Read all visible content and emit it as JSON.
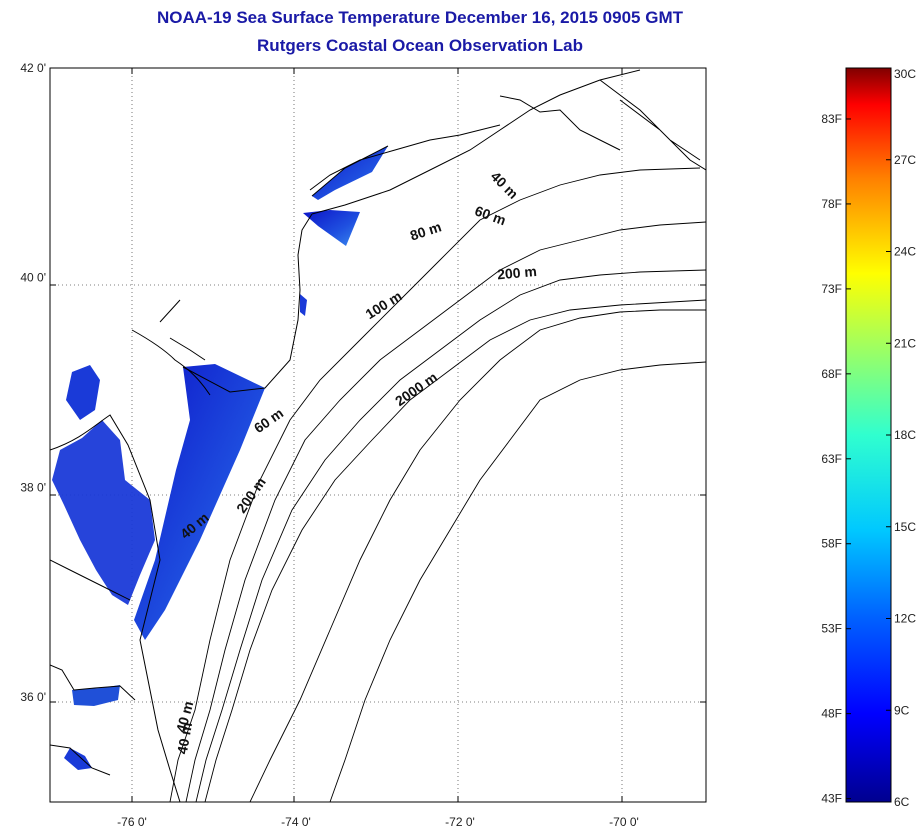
{
  "header": {
    "title": "NOAA-19 Sea Surface Temperature December 16, 2015 0905 GMT",
    "subtitle": "Rutgers Coastal Ocean Observation Lab"
  },
  "map": {
    "lon_range": [
      -77,
      -69
    ],
    "lat_range": [
      35,
      42
    ],
    "lat_ticks": [
      {
        "value": 42,
        "label": "42 0'"
      },
      {
        "value": 40,
        "label": "40 0'"
      },
      {
        "value": 38,
        "label": "38 0'"
      },
      {
        "value": 36,
        "label": "36 0'"
      }
    ],
    "lon_ticks": [
      {
        "value": -76,
        "label": "-76 0'"
      },
      {
        "value": -74,
        "label": "-74 0'"
      },
      {
        "value": -72,
        "label": "-72 0'"
      },
      {
        "value": -70,
        "label": "-70 0'"
      }
    ],
    "contour_labels": [
      {
        "text": "40 m",
        "lon": -71.5,
        "lat": 40.85,
        "rot": 45
      },
      {
        "text": "60 m",
        "lon": -71.65,
        "lat": 40.55,
        "rot": 20
      },
      {
        "text": "80 m",
        "lon": -72.4,
        "lat": 40.4,
        "rot": -18
      },
      {
        "text": "200 m",
        "lon": -71.3,
        "lat": 40.0,
        "rot": -5
      },
      {
        "text": "100 m",
        "lon": -72.9,
        "lat": 39.7,
        "rot": -32
      },
      {
        "text": "2000 m",
        "lon": -72.5,
        "lat": 38.9,
        "rot": -35
      },
      {
        "text": "60 m",
        "lon": -74.3,
        "lat": 38.6,
        "rot": -35
      },
      {
        "text": "200 m",
        "lon": -74.5,
        "lat": 37.9,
        "rot": -55
      },
      {
        "text": "40 m",
        "lon": -75.2,
        "lat": 37.6,
        "rot": -40
      },
      {
        "text": "40 m",
        "lon": -75.3,
        "lat": 35.8,
        "rot": -75
      },
      {
        "text": "40 m",
        "lon": -75.3,
        "lat": 35.6,
        "rot": -80
      }
    ],
    "colors": {
      "land_line": "#000000",
      "sst_dark": "#1020d0",
      "sst_light": "#2f7ae6"
    }
  },
  "colorbar": {
    "range_c": [
      6,
      30
    ],
    "celsius_labels": [
      "30C",
      "27C",
      "24C",
      "21C",
      "18C",
      "15C",
      "12C",
      "9C",
      "6C"
    ],
    "fahrenheit_labels": [
      "83F",
      "78F",
      "73F",
      "68F",
      "63F",
      "58F",
      "53F",
      "48F",
      "43F"
    ]
  }
}
